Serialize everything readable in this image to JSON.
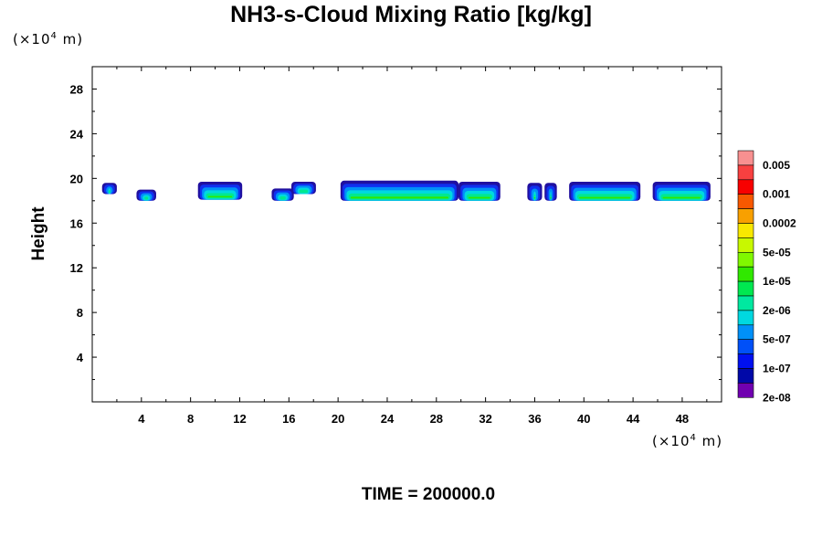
{
  "chart_data": {
    "type": "contour",
    "title": "NH3-s-Cloud Mixing Ratio [kg/kg]",
    "ylabel": "Height",
    "x_unit_prefix": "(×10",
    "x_unit_exp": "4",
    "x_unit_suffix": " m)",
    "y_unit_prefix": "(×10",
    "y_unit_exp": "4",
    "y_unit_suffix": " m)",
    "xlim": [
      0,
      51.2
    ],
    "ylim": [
      0,
      30
    ],
    "xticks": [
      4,
      8,
      12,
      16,
      20,
      24,
      28,
      32,
      36,
      40,
      44,
      48
    ],
    "yticks": [
      4,
      8,
      12,
      16,
      20,
      24,
      28
    ],
    "footer": "TIME = 200000.0",
    "colorbar": {
      "labels": [
        "0.005",
        "0.001",
        "0.0002",
        "5e-05",
        "1e-05",
        "2e-06",
        "5e-07",
        "1e-07",
        "2e-08"
      ],
      "colors": [
        "#f89090",
        "#f84040",
        "#f80000",
        "#f85800",
        "#f8a000",
        "#f8e800",
        "#c8f800",
        "#80f800",
        "#30e800",
        "#00e850",
        "#00e8a0",
        "#00d8e0",
        "#0090f8",
        "#0050f8",
        "#0010f0",
        "#0008a8",
        "#7000b0"
      ]
    },
    "cloud_layers": [
      {
        "x_start": 0.8,
        "x_end": 2.0,
        "top": 19.6,
        "bottom": 18.6
      },
      {
        "x_start": 3.6,
        "x_end": 5.2,
        "top": 19.0,
        "bottom": 18.0
      },
      {
        "x_start": 8.6,
        "x_end": 12.2,
        "top": 19.7,
        "bottom": 18.1
      },
      {
        "x_start": 14.6,
        "x_end": 16.4,
        "top": 19.1,
        "bottom": 18.0
      },
      {
        "x_start": 16.2,
        "x_end": 18.2,
        "top": 19.7,
        "bottom": 18.6
      },
      {
        "x_start": 20.2,
        "x_end": 29.8,
        "top": 19.8,
        "bottom": 18.0
      },
      {
        "x_start": 29.8,
        "x_end": 33.2,
        "top": 19.7,
        "bottom": 18.0
      },
      {
        "x_start": 35.4,
        "x_end": 36.6,
        "top": 19.6,
        "bottom": 18.0
      },
      {
        "x_start": 36.8,
        "x_end": 37.8,
        "top": 19.6,
        "bottom": 18.0
      },
      {
        "x_start": 38.8,
        "x_end": 44.6,
        "top": 19.7,
        "bottom": 18.0
      },
      {
        "x_start": 45.6,
        "x_end": 50.3,
        "top": 19.7,
        "bottom": 18.0
      }
    ]
  }
}
